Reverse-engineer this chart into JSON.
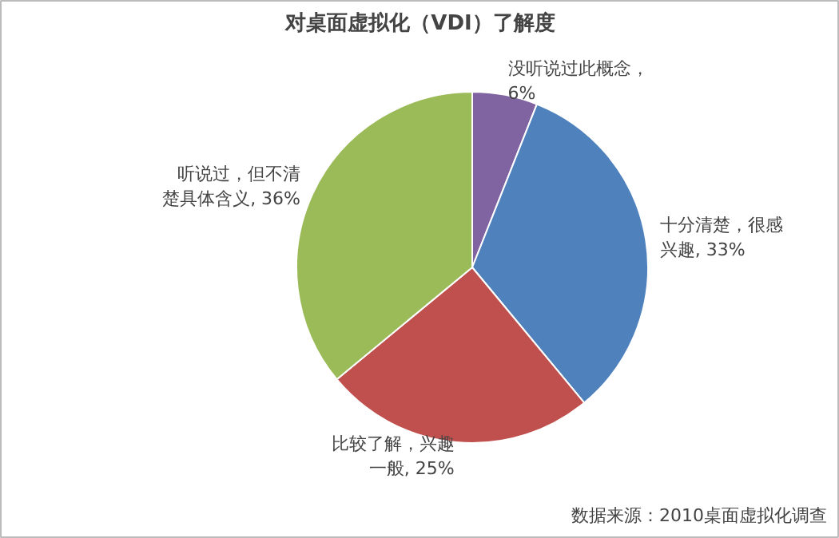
{
  "chart_data": {
    "type": "pie",
    "title": "对桌面虚拟化（VDI）了解度",
    "categories": [
      null,
      null,
      null,
      null
    ],
    "values": [
      6,
      33,
      25,
      36
    ],
    "value_labels": [
      "没听说过此概念，6%",
      "十分清楚，很感兴趣, 33%",
      "比较了解，兴趣一般, 25%",
      "听说过，但不清楚具体含义, 36%"
    ],
    "colors": [
      "#8064a2",
      "#4f81bd",
      "#c0504d",
      "#9bbb59"
    ],
    "annotations": [
      "数据来源：2010桌面虚拟化调查"
    ]
  }
}
